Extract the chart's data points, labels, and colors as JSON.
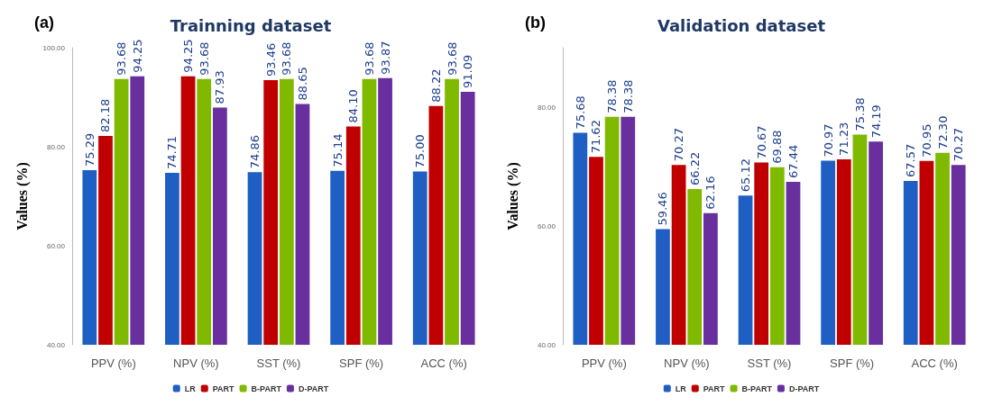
{
  "chart_data": [
    {
      "type": "bar",
      "title": "Trainning dataset",
      "annotations": [
        "(a)"
      ],
      "ylabel": "Values (%)",
      "categories": [
        "PPV (%)",
        "NPV (%)",
        "SST (%)",
        "SPF (%)",
        "ACC (%)"
      ],
      "ylim": [
        40,
        100
      ],
      "yticks": [
        {
          "value": 40,
          "label": "40.00"
        },
        {
          "value": 60,
          "label": "60.00"
        },
        {
          "value": 80,
          "label": "80.00"
        },
        {
          "value": 100,
          "label": "100.00"
        }
      ],
      "legend": "bottom",
      "grid": false,
      "series": [
        {
          "name": "LR",
          "color": "#1f5fc4",
          "values": [
            75.29,
            74.71,
            74.86,
            75.14,
            75.0
          ],
          "value_labels": [
            "75.29",
            "74.71",
            "74.86",
            "75.14",
            "75.00"
          ]
        },
        {
          "name": "PART",
          "color": "#c00000",
          "values": [
            82.18,
            94.25,
            93.46,
            84.1,
            88.22
          ],
          "value_labels": [
            "82.18",
            "94.25",
            "93.46",
            "84.10",
            "88.22"
          ]
        },
        {
          "name": "B-PART",
          "color": "#7fba00",
          "values": [
            93.68,
            93.68,
            93.68,
            93.68,
            93.68
          ],
          "value_labels": [
            "93.68",
            "93.68",
            "93.68",
            "93.68",
            "93.68"
          ]
        },
        {
          "name": "D-PART",
          "color": "#6a2f9f",
          "values": [
            94.25,
            87.93,
            88.65,
            93.87,
            91.09
          ],
          "value_labels": [
            "94.25",
            "87.93",
            "88.65",
            "93.87",
            "91.09"
          ]
        }
      ]
    },
    {
      "type": "bar",
      "title": "Validation dataset",
      "annotations": [
        "(b)"
      ],
      "ylabel": "Values (%)",
      "categories": [
        "PPV (%)",
        "NPV (%)",
        "SST (%)",
        "SPF (%)",
        "ACC (%)"
      ],
      "ylim": [
        40,
        90
      ],
      "yticks": [
        {
          "value": 40,
          "label": "40.00"
        },
        {
          "value": 60,
          "label": "60.00"
        },
        {
          "value": 80,
          "label": "80.00"
        }
      ],
      "legend": "bottom",
      "grid": false,
      "series": [
        {
          "name": "LR",
          "color": "#1f5fc4",
          "values": [
            75.68,
            59.46,
            65.12,
            70.97,
            67.57
          ],
          "value_labels": [
            "75.68",
            "59.46",
            "65.12",
            "70.97",
            "67.57"
          ]
        },
        {
          "name": "PART",
          "color": "#c00000",
          "values": [
            71.62,
            70.27,
            70.67,
            71.23,
            70.95
          ],
          "value_labels": [
            "71.62",
            "70.27",
            "70.67",
            "71.23",
            "70.95"
          ]
        },
        {
          "name": "B-PART",
          "color": "#7fba00",
          "values": [
            78.38,
            66.22,
            69.88,
            75.38,
            72.3
          ],
          "value_labels": [
            "78.38",
            "66.22",
            "69.88",
            "75.38",
            "72.30"
          ]
        },
        {
          "name": "D-PART",
          "color": "#6a2f9f",
          "values": [
            78.38,
            62.16,
            67.44,
            74.19,
            70.27
          ],
          "value_labels": [
            "78.38",
            "62.16",
            "67.44",
            "74.19",
            "70.27"
          ]
        }
      ]
    }
  ]
}
